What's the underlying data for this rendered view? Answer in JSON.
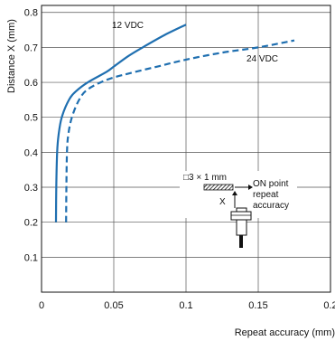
{
  "chart_data": {
    "type": "line",
    "xlabel": "Repeat accuracy (mm)",
    "ylabel": "Distance X (mm)",
    "xlim": [
      0,
      0.2
    ],
    "ylim": [
      0,
      0.82
    ],
    "x_ticks": [
      0,
      0.05,
      0.1,
      0.15,
      0.2
    ],
    "x_tick_labels": [
      "0",
      "0.05",
      "0.1",
      "0.15",
      "0.2"
    ],
    "y_ticks": [
      0.1,
      0.2,
      0.3,
      0.4,
      0.5,
      0.6,
      0.7,
      0.8
    ],
    "y_tick_labels": [
      "0.1",
      "0.2",
      "0.3",
      "0.4",
      "0.5",
      "0.6",
      "0.7",
      "0.8"
    ],
    "grid": true,
    "colors": {
      "series": "#1f6fb0",
      "grid": "#555555",
      "axis": "#111111"
    },
    "series": [
      {
        "name": "12 VDC",
        "style": "solid",
        "points": [
          [
            0.01,
            0.2
          ],
          [
            0.0102,
            0.3
          ],
          [
            0.0108,
            0.4
          ],
          [
            0.0118,
            0.45
          ],
          [
            0.014,
            0.5
          ],
          [
            0.019,
            0.55
          ],
          [
            0.024,
            0.575
          ],
          [
            0.032,
            0.6
          ],
          [
            0.045,
            0.63
          ],
          [
            0.05,
            0.645
          ],
          [
            0.06,
            0.675
          ],
          [
            0.07,
            0.7
          ],
          [
            0.085,
            0.735
          ],
          [
            0.1,
            0.765
          ]
        ]
      },
      {
        "name": "24 VDC",
        "style": "dashed",
        "points": [
          [
            0.017,
            0.2
          ],
          [
            0.0172,
            0.3
          ],
          [
            0.0176,
            0.4
          ],
          [
            0.0185,
            0.45
          ],
          [
            0.021,
            0.5
          ],
          [
            0.026,
            0.55
          ],
          [
            0.032,
            0.58
          ],
          [
            0.045,
            0.607
          ],
          [
            0.06,
            0.625
          ],
          [
            0.08,
            0.645
          ],
          [
            0.1,
            0.665
          ],
          [
            0.125,
            0.685
          ],
          [
            0.15,
            0.7
          ],
          [
            0.175,
            0.72
          ]
        ]
      }
    ],
    "inset": {
      "target_label": "□3 × 1 mm",
      "distance_label": "X",
      "on_point_lines": [
        "ON point",
        "repeat",
        "accuracy"
      ]
    }
  }
}
